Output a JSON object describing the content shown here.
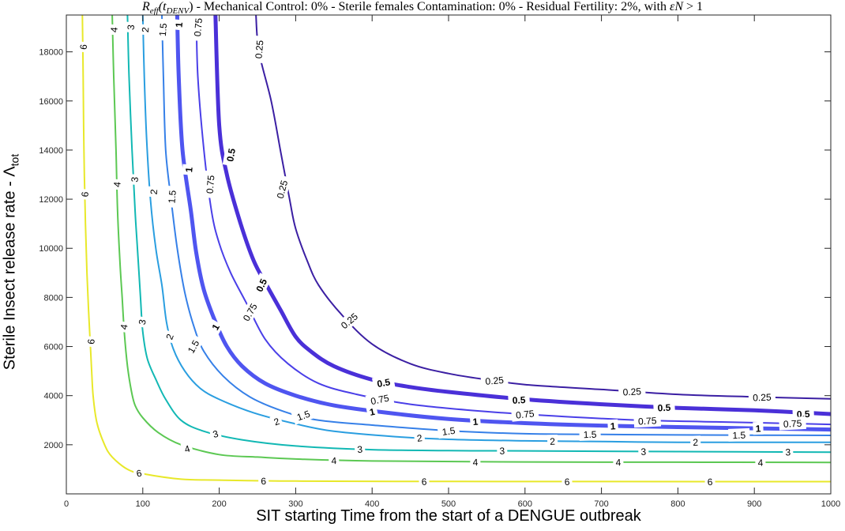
{
  "chart_data": {
    "type": "contour",
    "title": {
      "part1": "R",
      "part2": "eff",
      "part3": "(t",
      "part4": "DENV",
      "part5": ") - Mechanical Control: 0% - Sterile females Contamination: 0% - Residual Fertility: 2%, with ",
      "part6": "εN",
      "part7": " > 1"
    },
    "xlabel": "SIT starting Time from the start of a DENGUE outbreak",
    "ylabel_main": "Sterile Insect release rate - Λ",
    "ylabel_sub": "tot",
    "xlim": [
      0,
      1000
    ],
    "ylim": [
      0,
      19500
    ],
    "x_ticks": [
      0,
      100,
      200,
      300,
      400,
      500,
      600,
      700,
      800,
      900,
      1000
    ],
    "y_ticks": [
      2000,
      4000,
      6000,
      8000,
      10000,
      12000,
      14000,
      16000,
      18000
    ],
    "series": [
      {
        "name": "0.25",
        "color": "#3b1fa3",
        "width": 2,
        "bold": false,
        "points": [
          [
            248,
            19500
          ],
          [
            252,
            18000
          ],
          [
            268,
            16000
          ],
          [
            280,
            14000
          ],
          [
            292,
            12000
          ],
          [
            300,
            10800
          ],
          [
            315,
            9500
          ],
          [
            330,
            8500
          ],
          [
            360,
            7300
          ],
          [
            400,
            6100
          ],
          [
            450,
            5300
          ],
          [
            500,
            4900
          ],
          [
            550,
            4650
          ],
          [
            600,
            4450
          ],
          [
            700,
            4250
          ],
          [
            800,
            4050
          ],
          [
            900,
            3950
          ],
          [
            1000,
            3870
          ]
        ],
        "labels": [
          [
            252,
            18100,
            -85
          ],
          [
            282,
            12400,
            -75
          ],
          [
            370,
            7050,
            -40
          ],
          [
            560,
            4620,
            -5
          ],
          [
            740,
            4170,
            -3
          ],
          [
            910,
            3940,
            -2
          ]
        ]
      },
      {
        "name": "0.5",
        "color": "#4a30d8",
        "width": 5,
        "bold": true,
        "points": [
          [
            195,
            19500
          ],
          [
            200,
            15000
          ],
          [
            210,
            13000
          ],
          [
            228,
            11000
          ],
          [
            245,
            9500
          ],
          [
            262,
            8500
          ],
          [
            280,
            7500
          ],
          [
            300,
            6400
          ],
          [
            320,
            5800
          ],
          [
            350,
            5200
          ],
          [
            400,
            4650
          ],
          [
            450,
            4350
          ],
          [
            500,
            4150
          ],
          [
            600,
            3850
          ],
          [
            700,
            3650
          ],
          [
            800,
            3500
          ],
          [
            900,
            3400
          ],
          [
            1000,
            3250
          ]
        ],
        "labels": [
          [
            215,
            13800,
            -80
          ],
          [
            255,
            8500,
            -65
          ],
          [
            415,
            4530,
            -10
          ],
          [
            592,
            3830,
            -3
          ],
          [
            782,
            3520,
            -3
          ],
          [
            964,
            3260,
            -2
          ]
        ]
      },
      {
        "name": "0.75",
        "color": "#4a3fe8",
        "width": 2,
        "bold": false,
        "points": [
          [
            170,
            19500
          ],
          [
            172,
            17000
          ],
          [
            180,
            14000
          ],
          [
            190,
            11500
          ],
          [
            200,
            10200
          ],
          [
            215,
            9000
          ],
          [
            235,
            7800
          ],
          [
            260,
            6300
          ],
          [
            290,
            5300
          ],
          [
            330,
            4500
          ],
          [
            380,
            4050
          ],
          [
            450,
            3650
          ],
          [
            550,
            3350
          ],
          [
            650,
            3150
          ],
          [
            750,
            3000
          ],
          [
            850,
            2930
          ],
          [
            1000,
            2830
          ]
        ],
        "labels": [
          [
            172,
            19000,
            -85
          ],
          [
            188,
            12600,
            -85
          ],
          [
            240,
            7400,
            -60
          ],
          [
            410,
            3850,
            -12
          ],
          [
            600,
            3250,
            -6
          ],
          [
            760,
            2980,
            -3
          ],
          [
            950,
            2870,
            -3
          ]
        ]
      },
      {
        "name": "1",
        "color": "#4f55f0",
        "width": 5,
        "bold": true,
        "points": [
          [
            145,
            19500
          ],
          [
            147,
            17000
          ],
          [
            152,
            14000
          ],
          [
            163,
            11500
          ],
          [
            170,
            9800
          ],
          [
            180,
            8300
          ],
          [
            195,
            7000
          ],
          [
            210,
            6000
          ],
          [
            230,
            5200
          ],
          [
            260,
            4500
          ],
          [
            300,
            4000
          ],
          [
            350,
            3600
          ],
          [
            420,
            3300
          ],
          [
            500,
            3050
          ],
          [
            600,
            2880
          ],
          [
            700,
            2780
          ],
          [
            800,
            2720
          ],
          [
            1000,
            2620
          ]
        ],
        "labels": [
          [
            147,
            19100,
            -85
          ],
          [
            160,
            13200,
            -85
          ],
          [
            195,
            6800,
            -60
          ],
          [
            400,
            3350,
            -12
          ],
          [
            535,
            2950,
            -5
          ],
          [
            715,
            2770,
            -3
          ],
          [
            905,
            2670,
            -2
          ]
        ]
      },
      {
        "name": "1.5",
        "color": "#3680e8",
        "width": 2,
        "bold": false,
        "points": [
          [
            125,
            19500
          ],
          [
            127,
            17000
          ],
          [
            130,
            14000
          ],
          [
            137,
            12000
          ],
          [
            145,
            10000
          ],
          [
            155,
            8200
          ],
          [
            167,
            6800
          ],
          [
            180,
            5800
          ],
          [
            205,
            4800
          ],
          [
            240,
            3950
          ],
          [
            285,
            3350
          ],
          [
            330,
            3000
          ],
          [
            400,
            2800
          ],
          [
            500,
            2570
          ],
          [
            600,
            2450
          ],
          [
            700,
            2420
          ],
          [
            800,
            2400
          ],
          [
            1000,
            2380
          ]
        ],
        "labels": [
          [
            126,
            18900,
            -85
          ],
          [
            138,
            12100,
            -85
          ],
          [
            166,
            6000,
            -60
          ],
          [
            310,
            3200,
            -20
          ],
          [
            500,
            2560,
            -8
          ],
          [
            685,
            2430,
            -2
          ],
          [
            880,
            2400,
            -2
          ]
        ]
      },
      {
        "name": "2",
        "color": "#2a9ee0",
        "width": 2,
        "bold": false,
        "points": [
          [
            100,
            19500
          ],
          [
            102,
            17000
          ],
          [
            105,
            14500
          ],
          [
            110,
            12000
          ],
          [
            117,
            10000
          ],
          [
            125,
            8500
          ],
          [
            131,
            7000
          ],
          [
            140,
            5900
          ],
          [
            155,
            5000
          ],
          [
            175,
            4300
          ],
          [
            200,
            3850
          ],
          [
            245,
            3300
          ],
          [
            300,
            2850
          ],
          [
            350,
            2550
          ],
          [
            430,
            2330
          ],
          [
            500,
            2220
          ],
          [
            600,
            2160
          ],
          [
            700,
            2130
          ],
          [
            800,
            2100
          ],
          [
            1000,
            2100
          ]
        ],
        "labels": [
          [
            103,
            18900,
            -85
          ],
          [
            114,
            12300,
            -85
          ],
          [
            135,
            6400,
            -70
          ],
          [
            275,
            2950,
            -20
          ],
          [
            462,
            2280,
            -8
          ],
          [
            636,
            2150,
            -2
          ],
          [
            823,
            2110,
            -2
          ]
        ]
      },
      {
        "name": "3",
        "color": "#12b8b4",
        "width": 2,
        "bold": false,
        "points": [
          [
            80,
            19500
          ],
          [
            82,
            17000
          ],
          [
            86,
            14000
          ],
          [
            90,
            11500
          ],
          [
            93,
            10000
          ],
          [
            97,
            8000
          ],
          [
            100,
            6600
          ],
          [
            106,
            5500
          ],
          [
            118,
            4600
          ],
          [
            130,
            3850
          ],
          [
            150,
            3000
          ],
          [
            180,
            2550
          ],
          [
            230,
            2200
          ],
          [
            300,
            1950
          ],
          [
            400,
            1800
          ],
          [
            500,
            1760
          ],
          [
            600,
            1750
          ],
          [
            800,
            1720
          ],
          [
            1000,
            1700
          ]
        ],
        "labels": [
          [
            84,
            19000,
            -85
          ],
          [
            89,
            12800,
            -85
          ],
          [
            99,
            7000,
            -80
          ],
          [
            195,
            2450,
            -15
          ],
          [
            384,
            1820,
            -5
          ],
          [
            570,
            1760,
            -2
          ],
          [
            755,
            1730,
            -2
          ],
          [
            944,
            1710,
            -2
          ]
        ]
      },
      {
        "name": "4",
        "color": "#5cc853",
        "width": 2,
        "bold": false,
        "points": [
          [
            60,
            19500
          ],
          [
            62,
            17000
          ],
          [
            65,
            14000
          ],
          [
            67,
            11500
          ],
          [
            70,
            9500
          ],
          [
            73,
            8000
          ],
          [
            76,
            6500
          ],
          [
            80,
            5200
          ],
          [
            85,
            4200
          ],
          [
            90,
            3600
          ],
          [
            100,
            3100
          ],
          [
            120,
            2500
          ],
          [
            150,
            2000
          ],
          [
            200,
            1600
          ],
          [
            250,
            1500
          ],
          [
            300,
            1420
          ],
          [
            400,
            1340
          ],
          [
            600,
            1300
          ],
          [
            800,
            1290
          ],
          [
            1000,
            1280
          ]
        ],
        "labels": [
          [
            62,
            18900,
            -85
          ],
          [
            66,
            12600,
            -85
          ],
          [
            75,
            6800,
            -80
          ],
          [
            158,
            1840,
            -15
          ],
          [
            350,
            1360,
            -3
          ],
          [
            535,
            1300,
            -2
          ],
          [
            722,
            1295,
            -2
          ],
          [
            908,
            1285,
            -2
          ]
        ]
      },
      {
        "name": "6",
        "color": "#e8e82a",
        "width": 2,
        "bold": false,
        "points": [
          [
            21,
            19500
          ],
          [
            22,
            17000
          ],
          [
            23,
            14000
          ],
          [
            25,
            11000
          ],
          [
            27,
            9000
          ],
          [
            29,
            7500
          ],
          [
            31,
            6300
          ],
          [
            33,
            5100
          ],
          [
            35,
            4000
          ],
          [
            40,
            2900
          ],
          [
            50,
            2000
          ],
          [
            60,
            1500
          ],
          [
            80,
            1000
          ],
          [
            100,
            820
          ],
          [
            150,
            600
          ],
          [
            200,
            560
          ],
          [
            300,
            520
          ],
          [
            500,
            505
          ],
          [
            700,
            502
          ],
          [
            1000,
            500
          ]
        ],
        "labels": [
          [
            22,
            18200,
            -85
          ],
          [
            24,
            12200,
            -85
          ],
          [
            32,
            6200,
            -85
          ],
          [
            95,
            850,
            -10
          ],
          [
            258,
            530,
            -2
          ],
          [
            468,
            505,
            -2
          ],
          [
            655,
            502,
            -2
          ],
          [
            842,
            500,
            -2
          ]
        ]
      }
    ]
  }
}
